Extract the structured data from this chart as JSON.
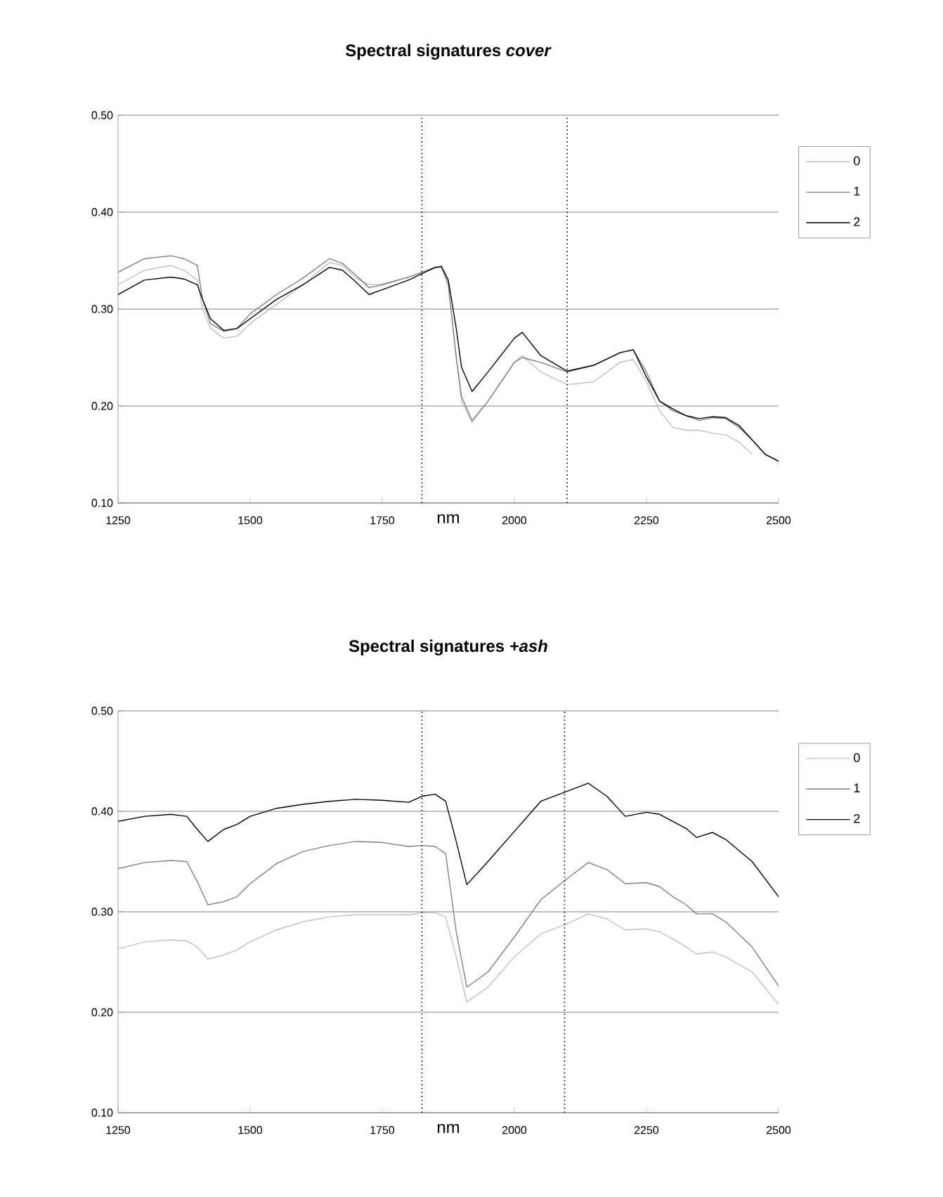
{
  "chart_data": [
    {
      "type": "line",
      "title": "Spectral signatures *cover*",
      "xlabel": "nm",
      "xlim": [
        1250,
        2500
      ],
      "ylim": [
        0.1,
        0.5
      ],
      "xticks": [
        1250,
        1500,
        1750,
        2000,
        2250,
        2500
      ],
      "yticks": [
        {
          "value": 0.1,
          "label": "0.10"
        },
        {
          "value": 0.2,
          "label": "0.20"
        },
        {
          "value": 0.3,
          "label": "0.30"
        },
        {
          "value": 0.4,
          "label": "0.40"
        },
        {
          "value": 0.5,
          "label": "0.50"
        }
      ],
      "grid": "y",
      "legend": "right",
      "ref_lines": [
        {
          "axis": "x",
          "value": 1825,
          "color": "#000000",
          "line_style": "dotted"
        },
        {
          "axis": "x",
          "value": 2100,
          "color": "#000000",
          "line_style": "dotted"
        }
      ],
      "x": [
        1250,
        1300,
        1350,
        1375,
        1400,
        1410,
        1425,
        1450,
        1475,
        1500,
        1550,
        1600,
        1650,
        1675,
        1700,
        1725,
        1750,
        1800,
        1850,
        1862,
        1875,
        1890,
        1900,
        1920,
        1950,
        2000,
        2015,
        2050,
        2100,
        2150,
        2200,
        2225,
        2250,
        2275,
        2300,
        2325,
        2350,
        2375,
        2400,
        2425,
        2450,
        2475,
        2500
      ],
      "series": [
        {
          "name": "0",
          "color": "#c0c0c0",
          "values": [
            0.325,
            0.34,
            0.345,
            0.34,
            0.33,
            0.3,
            0.28,
            0.27,
            0.272,
            0.285,
            0.305,
            0.325,
            0.348,
            0.345,
            0.332,
            0.325,
            0.326,
            0.333,
            0.342,
            0.343,
            0.325,
            0.25,
            0.205,
            0.183,
            0.205,
            0.245,
            0.252,
            0.235,
            0.222,
            0.225,
            0.245,
            0.248,
            0.225,
            0.195,
            0.178,
            0.175,
            0.175,
            0.172,
            0.17,
            0.163,
            0.15,
            null,
            null
          ]
        },
        {
          "name": "1",
          "color": "#808080",
          "values": [
            0.338,
            0.352,
            0.355,
            0.352,
            0.345,
            0.31,
            0.285,
            0.277,
            0.28,
            0.295,
            0.315,
            0.332,
            0.352,
            0.347,
            0.335,
            0.322,
            0.325,
            0.333,
            0.343,
            0.344,
            0.325,
            0.25,
            0.21,
            0.185,
            0.205,
            0.245,
            0.25,
            0.245,
            0.235,
            0.242,
            0.255,
            0.258,
            0.235,
            0.205,
            0.195,
            0.19,
            0.185,
            0.188,
            0.187,
            0.178,
            0.165,
            0.15,
            0.143
          ]
        },
        {
          "name": "2",
          "color": "#000000",
          "values": [
            0.315,
            0.33,
            0.333,
            0.331,
            0.325,
            0.31,
            0.29,
            0.278,
            0.28,
            0.29,
            0.31,
            0.325,
            0.343,
            0.34,
            0.328,
            0.315,
            0.32,
            0.33,
            0.343,
            0.344,
            0.33,
            0.28,
            0.24,
            0.215,
            0.235,
            0.27,
            0.276,
            0.252,
            0.236,
            0.242,
            0.255,
            0.258,
            0.23,
            0.205,
            0.197,
            0.19,
            0.187,
            0.189,
            0.188,
            0.18,
            0.165,
            0.15,
            0.143
          ]
        }
      ]
    },
    {
      "type": "line",
      "title": "Spectral signatures  *+ash*",
      "xlabel": "nm",
      "xlim": [
        1250,
        2500
      ],
      "ylim": [
        0.1,
        0.5
      ],
      "xticks": [
        1250,
        1500,
        1750,
        2000,
        2250,
        2500
      ],
      "yticks": [
        {
          "value": 0.1,
          "label": "0.10"
        },
        {
          "value": 0.2,
          "label": "0.20"
        },
        {
          "value": 0.3,
          "label": "0.30"
        },
        {
          "value": 0.4,
          "label": "0.40"
        },
        {
          "value": 0.5,
          "label": "0.50"
        }
      ],
      "grid": "y",
      "legend": "right",
      "ref_lines": [
        {
          "axis": "x",
          "value": 1825,
          "color": "#000000",
          "line_style": "dotted"
        },
        {
          "axis": "x",
          "value": 2095,
          "color": "#000000",
          "line_style": "dotted"
        }
      ],
      "x": [
        1250,
        1300,
        1350,
        1380,
        1400,
        1420,
        1450,
        1475,
        1500,
        1550,
        1600,
        1650,
        1700,
        1750,
        1800,
        1825,
        1850,
        1870,
        1890,
        1910,
        1950,
        2000,
        2050,
        2100,
        2140,
        2175,
        2210,
        2250,
        2275,
        2300,
        2325,
        2345,
        2375,
        2400,
        2450,
        2500
      ],
      "series": [
        {
          "name": "0",
          "color": "#c0c0c0",
          "values": [
            0.263,
            0.27,
            0.272,
            0.271,
            0.265,
            0.253,
            0.257,
            0.262,
            0.27,
            0.282,
            0.29,
            0.295,
            0.297,
            0.297,
            0.297,
            0.299,
            0.299,
            0.295,
            0.255,
            0.21,
            0.225,
            0.255,
            0.278,
            0.288,
            0.298,
            0.293,
            0.282,
            0.283,
            0.28,
            0.273,
            0.265,
            0.258,
            0.26,
            0.255,
            0.24,
            0.208
          ]
        },
        {
          "name": "1",
          "color": "#808080",
          "values": [
            0.343,
            0.349,
            0.351,
            0.35,
            0.33,
            0.307,
            0.31,
            0.315,
            0.328,
            0.348,
            0.36,
            0.366,
            0.37,
            0.369,
            0.365,
            0.366,
            0.365,
            0.358,
            0.28,
            0.225,
            0.24,
            0.275,
            0.312,
            0.333,
            0.349,
            0.342,
            0.328,
            0.329,
            0.325,
            0.315,
            0.307,
            0.298,
            0.298,
            0.29,
            0.265,
            0.226
          ]
        },
        {
          "name": "2",
          "color": "#000000",
          "values": [
            0.39,
            0.395,
            0.397,
            0.395,
            0.382,
            0.37,
            0.382,
            0.387,
            0.395,
            0.403,
            0.407,
            0.41,
            0.412,
            0.411,
            0.409,
            0.415,
            0.417,
            0.41,
            0.37,
            0.327,
            0.35,
            0.38,
            0.41,
            0.42,
            0.428,
            0.415,
            0.395,
            0.399,
            0.397,
            0.39,
            0.383,
            0.374,
            0.379,
            0.372,
            0.35,
            0.315
          ]
        }
      ]
    }
  ]
}
